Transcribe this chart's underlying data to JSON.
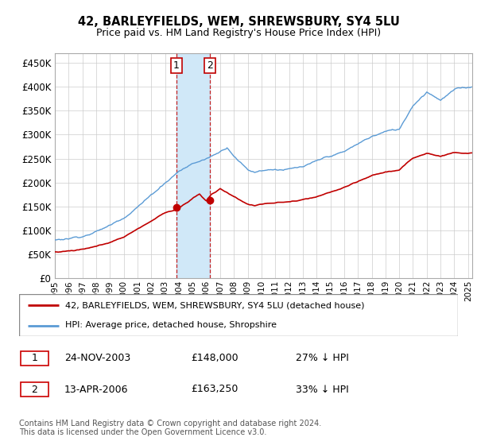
{
  "title": "42, BARLEYFIELDS, WEM, SHREWSBURY, SY4 5LU",
  "subtitle": "Price paid vs. HM Land Registry's House Price Index (HPI)",
  "legend_line1": "42, BARLEYFIELDS, WEM, SHREWSBURY, SY4 5LU (detached house)",
  "legend_line2": "HPI: Average price, detached house, Shropshire",
  "transaction1_date": "24-NOV-2003",
  "transaction1_price": "£148,000",
  "transaction1_hpi": "27% ↓ HPI",
  "transaction2_date": "13-APR-2006",
  "transaction2_price": "£163,250",
  "transaction2_hpi": "33% ↓ HPI",
  "footer": "Contains HM Land Registry data © Crown copyright and database right 2024.\nThis data is licensed under the Open Government Licence v3.0.",
  "hpi_color": "#5b9bd5",
  "price_color": "#c00000",
  "marker_color": "#c00000",
  "vline_color": "#c00000",
  "span_color": "#d0e8f8",
  "ylim_min": 0,
  "ylim_max": 470000,
  "yticks": [
    0,
    50000,
    100000,
    150000,
    200000,
    250000,
    300000,
    350000,
    400000,
    450000
  ],
  "xlim_min": 1995.0,
  "xlim_max": 2025.3,
  "background_color": "#ffffff"
}
